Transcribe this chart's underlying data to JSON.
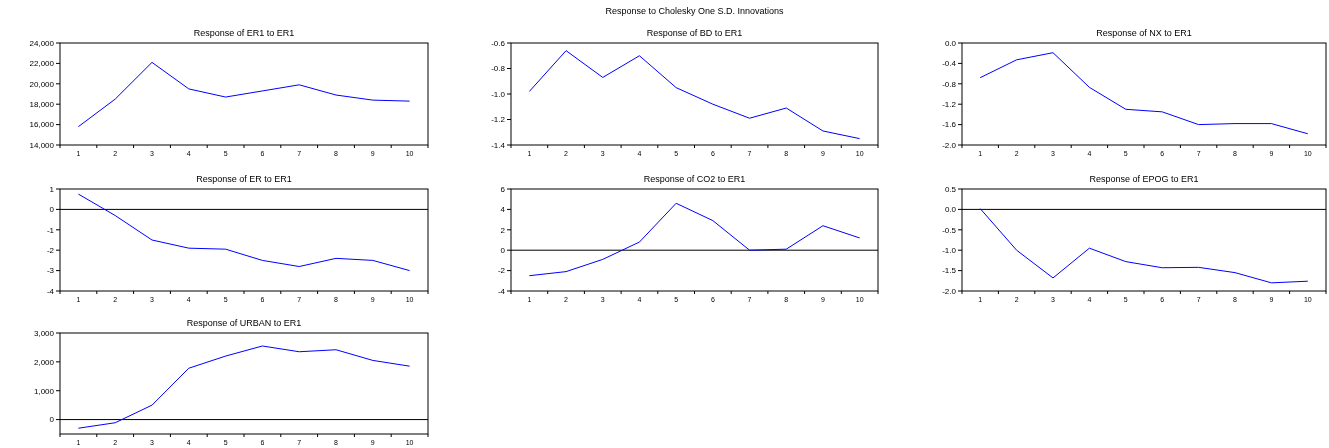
{
  "chart_data": [
    {
      "type": "line",
      "title": "Response of ER1 to ER1",
      "categories": [
        "1",
        "2",
        "3",
        "4",
        "5",
        "6",
        "7",
        "8",
        "9",
        "10"
      ],
      "series": [
        {
          "color": "#0000ff",
          "values": [
            15800,
            18500,
            22100,
            19500,
            18700,
            19300,
            19900,
            18900,
            18400,
            18300
          ]
        }
      ],
      "ylim": [
        14000,
        24000
      ],
      "yticks": [
        {
          "value": 14000,
          "label": "14,000"
        },
        {
          "value": 16000,
          "label": "16,000"
        },
        {
          "value": 18000,
          "label": "18,000"
        },
        {
          "value": 20000,
          "label": "20,000"
        },
        {
          "value": 22000,
          "label": "22,000"
        },
        {
          "value": 24000,
          "label": "24,000"
        }
      ]
    },
    {
      "type": "line",
      "title": "Response of BD to ER1",
      "annotations": [
        "Response to Cholesky One S.D. Innovations"
      ],
      "categories": [
        "1",
        "2",
        "3",
        "4",
        "5",
        "6",
        "7",
        "8",
        "9",
        "10"
      ],
      "series": [
        {
          "color": "#0000ff",
          "values": [
            -0.98,
            -0.66,
            -0.87,
            -0.7,
            -0.95,
            -1.08,
            -1.19,
            -1.11,
            -1.29,
            -1.35
          ]
        }
      ],
      "ylim": [
        -1.4,
        -0.6
      ],
      "yticks": [
        {
          "value": -1.4,
          "label": "-1.4"
        },
        {
          "value": -1.2,
          "label": "-1.2"
        },
        {
          "value": -1.0,
          "label": "-1.0"
        },
        {
          "value": -0.8,
          "label": "-0.8"
        },
        {
          "value": -0.6,
          "label": "-0.6"
        }
      ]
    },
    {
      "type": "line",
      "title": "Response of NX to ER1",
      "categories": [
        "1",
        "2",
        "3",
        "4",
        "5",
        "6",
        "7",
        "8",
        "9",
        "10"
      ],
      "series": [
        {
          "color": "#0000ff",
          "values": [
            -0.68,
            -0.33,
            -0.19,
            -0.87,
            -1.3,
            -1.35,
            -1.6,
            -1.58,
            -1.58,
            -1.78
          ]
        }
      ],
      "ylim": [
        -2.0,
        0.0
      ],
      "yticks": [
        {
          "value": -2.0,
          "label": "-2.0"
        },
        {
          "value": -1.6,
          "label": "-1.6"
        },
        {
          "value": -1.2,
          "label": "-1.2"
        },
        {
          "value": -0.8,
          "label": "-0.8"
        },
        {
          "value": -0.4,
          "label": "-0.4"
        },
        {
          "value": 0,
          "label": "0.0"
        }
      ]
    },
    {
      "type": "line",
      "title": "Response of ER to ER1",
      "categories": [
        "1",
        "2",
        "3",
        "4",
        "5",
        "6",
        "7",
        "8",
        "9",
        "10"
      ],
      "series": [
        {
          "color": "#0000ff",
          "values": [
            0.75,
            -0.3,
            -1.5,
            -1.9,
            -1.95,
            -2.5,
            -2.8,
            -2.4,
            -2.5,
            -3.0
          ]
        }
      ],
      "ylim": [
        -4,
        1
      ],
      "yticks": [
        -4,
        -3,
        -2,
        -1,
        0,
        1
      ],
      "ref_lines": [
        {
          "axis": "y",
          "value": 0,
          "color": "#000000"
        }
      ]
    },
    {
      "type": "line",
      "title": "Response of CO2  to ER1",
      "categories": [
        "1",
        "2",
        "3",
        "4",
        "5",
        "6",
        "7",
        "8",
        "9",
        "10"
      ],
      "series": [
        {
          "color": "#0000ff",
          "values": [
            -2.5,
            -2.1,
            -0.9,
            0.8,
            4.6,
            2.9,
            0.0,
            0.1,
            2.4,
            1.2
          ]
        }
      ],
      "ylim": [
        -4,
        6
      ],
      "yticks": [
        -4,
        -2,
        0,
        2,
        4,
        6
      ],
      "ref_lines": [
        {
          "axis": "y",
          "value": 0,
          "color": "#000000"
        }
      ]
    },
    {
      "type": "line",
      "title": "Response of EPOG to ER1",
      "categories": [
        "1",
        "2",
        "3",
        "4",
        "5",
        "6",
        "7",
        "8",
        "9",
        "10"
      ],
      "series": [
        {
          "color": "#0000ff",
          "values": [
            0.02,
            -1.0,
            -1.68,
            -0.95,
            -1.28,
            -1.43,
            -1.42,
            -1.55,
            -1.8,
            -1.76
          ]
        }
      ],
      "ylim": [
        -2.0,
        0.5
      ],
      "yticks": [
        {
          "value": -2.0,
          "label": "-2.0"
        },
        {
          "value": -1.5,
          "label": "-1.5"
        },
        {
          "value": -1.0,
          "label": "-1.0"
        },
        {
          "value": -0.5,
          "label": "-0.5"
        },
        {
          "value": 0,
          "label": "0.0"
        },
        {
          "value": 0.5,
          "label": "0.5"
        }
      ],
      "ref_lines": [
        {
          "axis": "y",
          "value": 0,
          "color": "#000000"
        }
      ]
    },
    {
      "type": "line",
      "title": "Response of URBAN to ER1",
      "categories": [
        "1",
        "2",
        "3",
        "4",
        "5",
        "6",
        "7",
        "8",
        "9",
        "10"
      ],
      "series": [
        {
          "color": "#0000ff",
          "values": [
            -300,
            -110,
            500,
            1780,
            2200,
            2550,
            2350,
            2420,
            2050,
            1850
          ]
        }
      ],
      "ylim": [
        -500,
        3000
      ],
      "yticks": [
        0,
        {
          "value": 1000,
          "label": "1,000"
        },
        {
          "value": 2000,
          "label": "2,000"
        },
        {
          "value": 3000,
          "label": "3,000"
        }
      ],
      "ref_lines": [
        {
          "axis": "y",
          "value": 0,
          "color": "#000000"
        }
      ]
    }
  ]
}
